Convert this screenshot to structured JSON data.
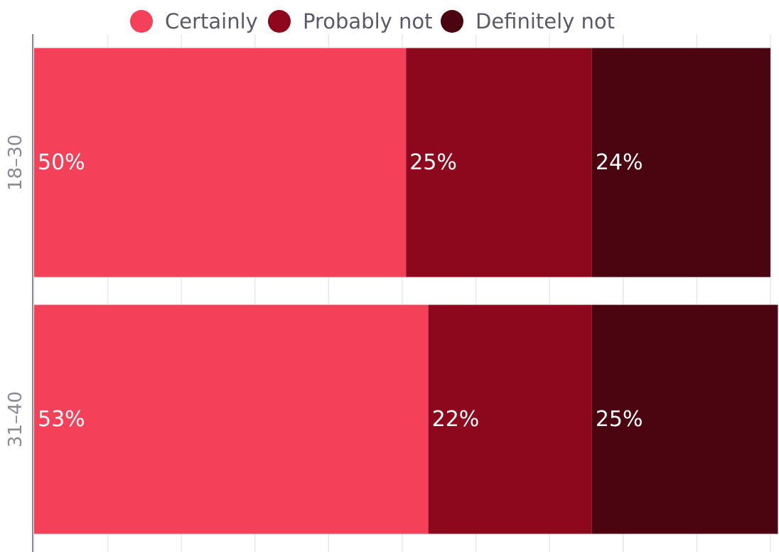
{
  "chart_data": {
    "type": "bar",
    "orientation": "horizontal",
    "stacked": true,
    "categories": [
      "18–30",
      "31–40"
    ],
    "series": [
      {
        "name": "Certainly",
        "values": [
          50,
          53
        ],
        "color": "#f5405a"
      },
      {
        "name": "Probably not",
        "values": [
          25,
          22
        ],
        "color": "#8e081d"
      },
      {
        "name": "Definitely not",
        "values": [
          24,
          25
        ],
        "color": "#4b0510"
      }
    ],
    "value_labels": [
      [
        "50%",
        "53%"
      ],
      [
        "25%",
        "22%"
      ],
      [
        "24%",
        "25%"
      ]
    ],
    "xlim": [
      0,
      99
    ],
    "grid": true,
    "legend_position": "top-center"
  }
}
